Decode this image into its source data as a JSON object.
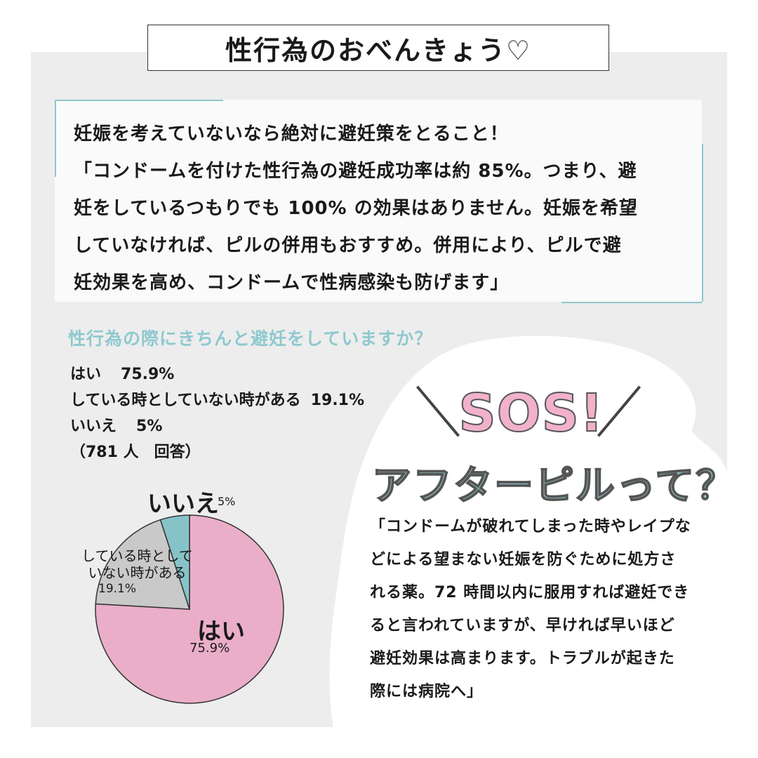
{
  "header": {
    "title": "性行為のおべんきょう♡"
  },
  "intro": {
    "lines": [
      "妊娠を考えていないなら絶対に避妊策をとること！",
      "「コンドームを付けた性行為の避妊成功率は約 85%。つまり、避",
      "妊をしているつもりでも 100% の効果はありません。妊娠を希望",
      "していなければ、ピルの併用もおすすめ。併用により、ピルで避",
      "妊効果を高め、コンドームで性病感染も防げます」"
    ]
  },
  "survey": {
    "question": "性行為の際にきちんと避妊をしていますか？",
    "answers": [
      {
        "label": "はい",
        "pct": "75.9%"
      },
      {
        "label": "している時としていない時がある",
        "pct": "19.1%"
      },
      {
        "label": "いいえ",
        "pct": "5%"
      }
    ],
    "respondents": "（781 人　回答）"
  },
  "chart_data": {
    "type": "pie",
    "slices": [
      {
        "label": "はい",
        "value": 75.9,
        "color": "#eaaec8"
      },
      {
        "label": "している時としていない時がある",
        "value": 19.1,
        "color": "#c9c9c9"
      },
      {
        "label": "いいえ",
        "value": 5.0,
        "color": "#86c3c9"
      }
    ],
    "labels": {
      "no": "いいえ",
      "no_pct": "5%",
      "some_line1": "している時として",
      "some_line2": "いない時がある",
      "some_pct": "19.1%",
      "yes": "はい",
      "yes_pct": "75.9%"
    }
  },
  "sos": {
    "badge": "SOS!",
    "title": "アフターピルって？",
    "lines": [
      "「コンドームが破れてしまった時やレイプな",
      "どによる望まない妊娠を防ぐために処方さ",
      "れる薬。72 時間以内に服用すれば避妊でき",
      "ると言われていますが、早ければ早いほど",
      "避妊効果は高まります。トラブルが起きた",
      "際には病院へ」"
    ]
  },
  "colors": {
    "accent_teal": "#8ec9cf",
    "accent_pink": "#f2b1cb",
    "panel_gray": "#ededed"
  }
}
